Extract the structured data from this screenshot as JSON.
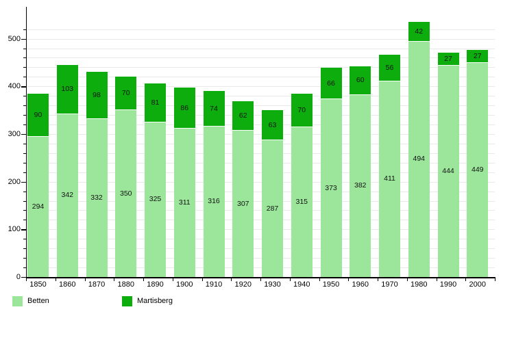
{
  "chart_data": {
    "type": "bar",
    "stacked": true,
    "title": "",
    "xlabel": "",
    "ylabel": "",
    "categories": [
      "1850",
      "1860",
      "1870",
      "1880",
      "1890",
      "1900",
      "1910",
      "1920",
      "1930",
      "1940",
      "1950",
      "1960",
      "1970",
      "1980",
      "1990",
      "2000"
    ],
    "series": [
      {
        "name": "Betten",
        "color": "#9be69b",
        "values": [
          294,
          342,
          332,
          350,
          325,
          311,
          316,
          307,
          287,
          315,
          373,
          382,
          411,
          494,
          444,
          449
        ]
      },
      {
        "name": "Martisberg",
        "color": "#0cad0c",
        "values": [
          90,
          103,
          98,
          70,
          81,
          86,
          74,
          62,
          63,
          70,
          66,
          60,
          56,
          42,
          27,
          27
        ]
      }
    ],
    "y_ticks": [
      0,
      100,
      200,
      300,
      400,
      500
    ],
    "y_minor_step": 20,
    "ylim": [
      0,
      554
    ],
    "grid": true,
    "gridline_color": "#e9e9e9",
    "axis_color": "#000000",
    "legend_position": "bottom-left"
  }
}
